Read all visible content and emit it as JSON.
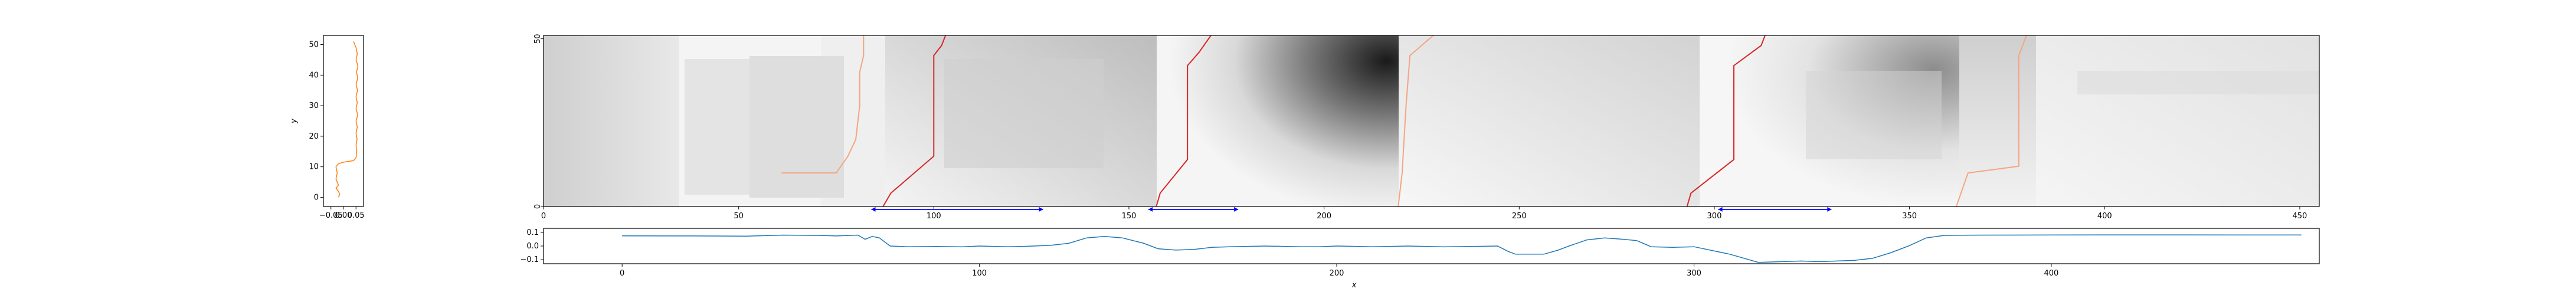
{
  "chart_data": [
    {
      "id": "left-profile",
      "type": "line",
      "ylabel": "y",
      "xlim": [
        -0.08,
        0.08
      ],
      "ylim": [
        -3,
        53
      ],
      "xticks": [
        -0.05,
        0.0,
        0.05
      ],
      "xtick_labels": [
        "−0.05",
        "0.00",
        "0.05"
      ],
      "yticks": [
        0,
        10,
        20,
        30,
        40,
        50
      ],
      "ytick_labels": [
        "0",
        "10",
        "20",
        "30",
        "40",
        "50"
      ],
      "series": [
        {
          "color": "#ff7f0e",
          "points": [
            [
              0.04,
              51
            ],
            [
              0.05,
              49
            ],
            [
              0.055,
              47
            ],
            [
              0.05,
              45
            ],
            [
              0.058,
              43
            ],
            [
              0.052,
              41
            ],
            [
              0.057,
              39
            ],
            [
              0.05,
              37
            ],
            [
              0.056,
              35
            ],
            [
              0.05,
              33
            ],
            [
              0.055,
              31
            ],
            [
              0.05,
              29
            ],
            [
              0.057,
              27
            ],
            [
              0.05,
              25
            ],
            [
              0.055,
              23
            ],
            [
              0.05,
              21
            ],
            [
              0.054,
              19
            ],
            [
              0.05,
              17
            ],
            [
              0.053,
              15
            ],
            [
              0.05,
              13
            ],
            [
              0.04,
              12
            ],
            [
              0.0,
              11.5
            ],
            [
              -0.02,
              11
            ],
            [
              -0.03,
              10
            ],
            [
              -0.025,
              8
            ],
            [
              -0.03,
              6
            ],
            [
              -0.02,
              4
            ],
            [
              -0.03,
              3
            ],
            [
              -0.02,
              2
            ],
            [
              -0.015,
              1
            ],
            [
              -0.02,
              0
            ]
          ]
        }
      ]
    },
    {
      "id": "main-heatmap",
      "type": "heatmap",
      "xlim": [
        0,
        455
      ],
      "ylim": [
        0,
        51
      ],
      "xticks": [
        0,
        50,
        100,
        150,
        200,
        250,
        300,
        350,
        400,
        450
      ],
      "xtick_labels": [
        "0",
        "50",
        "100",
        "150",
        "200",
        "250",
        "300",
        "350",
        "400",
        "450"
      ],
      "yticks": [
        0,
        50
      ],
      "ytick_labels": [
        "0",
        "50"
      ],
      "colormap": "gray_r",
      "paths": [
        {
          "color": "#f4a582",
          "points": [
            [
              61,
              10
            ],
            [
              75,
              10
            ],
            [
              78,
              15
            ],
            [
              80,
              20
            ],
            [
              81,
              30
            ],
            [
              81,
              40
            ],
            [
              82,
              45
            ],
            [
              82,
              51
            ]
          ]
        },
        {
          "color": "#d62728",
          "points": [
            [
              87,
              0
            ],
            [
              89,
              4
            ],
            [
              100,
              15
            ],
            [
              100,
              30
            ],
            [
              100,
              45
            ],
            [
              102,
              48
            ],
            [
              103,
              51
            ]
          ]
        },
        {
          "color": "#d62728",
          "points": [
            [
              157,
              0
            ],
            [
              158,
              4
            ],
            [
              165,
              14
            ],
            [
              165,
              30
            ],
            [
              165,
              42
            ],
            [
              168,
              46
            ],
            [
              171,
              51
            ]
          ]
        },
        {
          "color": "#f4a582",
          "points": [
            [
              219,
              0
            ],
            [
              220,
              10
            ],
            [
              221,
              30
            ],
            [
              222,
              45
            ],
            [
              228,
              51
            ]
          ]
        },
        {
          "color": "#d62728",
          "points": [
            [
              293,
              0
            ],
            [
              294,
              4
            ],
            [
              305,
              14
            ],
            [
              305,
              30
            ],
            [
              305,
              42
            ],
            [
              312,
              48
            ],
            [
              313,
              51
            ]
          ]
        },
        {
          "color": "#f4a582",
          "points": [
            [
              362,
              0
            ],
            [
              365,
              10
            ],
            [
              378,
              12
            ],
            [
              378,
              30
            ],
            [
              378,
              45
            ],
            [
              380,
              51
            ]
          ]
        }
      ],
      "markers": [
        {
          "color": "#0000ff",
          "x0": 84,
          "x1": 128,
          "y": -0.5
        },
        {
          "color": "#0000ff",
          "x0": 155,
          "x1": 178,
          "y": -0.5
        },
        {
          "color": "#0000ff",
          "x0": 301,
          "x1": 330,
          "y": -0.5
        }
      ]
    },
    {
      "id": "bottom-profile",
      "type": "line",
      "xlabel": "x",
      "xlim": [
        -22,
        475
      ],
      "ylim": [
        -0.13,
        0.13
      ],
      "xticks": [
        0,
        100,
        200,
        300,
        400
      ],
      "xtick_labels": [
        "0",
        "100",
        "200",
        "300",
        "400"
      ],
      "yticks": [
        0.1,
        0.0,
        -0.1
      ],
      "ytick_labels": [
        "0.1",
        "0.0",
        "−0.1"
      ],
      "series": [
        {
          "color": "#1f77b4",
          "points": [
            [
              0,
              0.075
            ],
            [
              20,
              0.074
            ],
            [
              35,
              0.073
            ],
            [
              45,
              0.08
            ],
            [
              55,
              0.078
            ],
            [
              60,
              0.074
            ],
            [
              66,
              0.08
            ],
            [
              68,
              0.05
            ],
            [
              70,
              0.07
            ],
            [
              72,
              0.06
            ],
            [
              75,
              0.0
            ],
            [
              80,
              -0.005
            ],
            [
              88,
              -0.003
            ],
            [
              95,
              -0.006
            ],
            [
              100,
              0.0
            ],
            [
              108,
              -0.005
            ],
            [
              113,
              -0.002
            ],
            [
              120,
              0.005
            ],
            [
              125,
              0.02
            ],
            [
              130,
              0.06
            ],
            [
              135,
              0.07
            ],
            [
              140,
              0.06
            ],
            [
              146,
              0.02
            ],
            [
              150,
              -0.02
            ],
            [
              155,
              -0.03
            ],
            [
              160,
              -0.025
            ],
            [
              165,
              -0.01
            ],
            [
              170,
              -0.005
            ],
            [
              180,
              0.0
            ],
            [
              190,
              -0.005
            ],
            [
              195,
              -0.005
            ],
            [
              200,
              0.0
            ],
            [
              210,
              -0.005
            ],
            [
              220,
              0.0
            ],
            [
              230,
              -0.006
            ],
            [
              240,
              -0.002
            ],
            [
              245,
              0.0
            ],
            [
              248,
              -0.04
            ],
            [
              250,
              -0.06
            ],
            [
              258,
              -0.06
            ],
            [
              262,
              -0.03
            ],
            [
              265,
              0.0
            ],
            [
              270,
              0.045
            ],
            [
              275,
              0.06
            ],
            [
              280,
              0.05
            ],
            [
              284,
              0.04
            ],
            [
              288,
              -0.005
            ],
            [
              294,
              -0.01
            ],
            [
              300,
              -0.005
            ],
            [
              310,
              -0.06
            ],
            [
              318,
              -0.12
            ],
            [
              330,
              -0.11
            ],
            [
              335,
              -0.115
            ],
            [
              345,
              -0.105
            ],
            [
              350,
              -0.09
            ],
            [
              355,
              -0.05
            ],
            [
              360,
              0.0
            ],
            [
              365,
              0.06
            ],
            [
              370,
              0.078
            ],
            [
              380,
              0.08
            ],
            [
              400,
              0.081
            ],
            [
              420,
              0.082
            ],
            [
              440,
              0.082
            ],
            [
              460,
              0.081
            ],
            [
              470,
              0.081
            ]
          ]
        }
      ]
    }
  ]
}
